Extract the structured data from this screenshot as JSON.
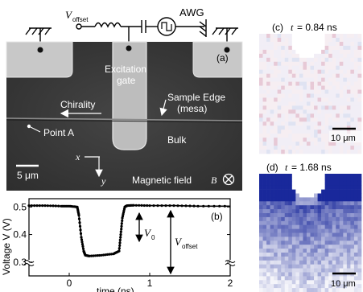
{
  "panel_a": {
    "label": "(a)",
    "circuit": {
      "v_symbol": "V",
      "v_subscript": "offset",
      "awg_label": "AWG"
    },
    "excitation_gate_line1": "Excitation",
    "excitation_gate_line2": "gate",
    "chirality_label": "Chirality",
    "sample_edge_line1": "Sample Edge",
    "sample_edge_line2": "(mesa)",
    "point_a_label": "Point A",
    "bulk_label": "Bulk",
    "axis_x": "x",
    "axis_y": "y",
    "scalebar": "5 μm",
    "magnetic_field_text": "Magnetic field",
    "magnetic_field_symbol": "B"
  },
  "panel_b": {
    "label": "(b)",
    "v0_symbol": "V",
    "v0_sub": "0",
    "voffset_symbol": "V",
    "voffset_sub": "offset"
  },
  "panel_c": {
    "label_prefix": "(c)",
    "t_symbol": "t",
    "value": "= 0.84 ns",
    "scalebar": "10 μm"
  },
  "panel_d": {
    "label_prefix": "(d)",
    "t_symbol": "t",
    "value": "= 1.68 ns",
    "scalebar": "10 μm"
  },
  "chart_data": {
    "type": "line",
    "xlabel": "time (ns)",
    "ylabel": "Voltage V (V)",
    "xlim": [
      -0.5,
      2.0
    ],
    "ylim": [
      0.25,
      0.53
    ],
    "xticks": [
      0,
      1,
      2
    ],
    "yticks": [
      0.3,
      0.4,
      0.5
    ],
    "axis_break": "y-axis broken below 0.3",
    "series": [
      {
        "x": [
          -0.5,
          -0.3,
          -0.1,
          0.0,
          0.1,
          0.12,
          0.15,
          0.18,
          0.2,
          0.25,
          0.4,
          0.55,
          0.62,
          0.64,
          0.66,
          0.69,
          0.72,
          0.8,
          1.0,
          1.3,
          1.6,
          2.0
        ],
        "y": [
          0.505,
          0.505,
          0.503,
          0.503,
          0.5,
          0.47,
          0.39,
          0.34,
          0.325,
          0.322,
          0.325,
          0.33,
          0.34,
          0.4,
          0.46,
          0.5,
          0.505,
          0.506,
          0.505,
          0.505,
          0.503,
          0.503
        ]
      }
    ]
  },
  "colors": {
    "sem_background": "#3a3a3a",
    "sem_gate": "#bdbdbd",
    "heatmap_pale": "#f2e9ee",
    "heatmap_blue": "#1a2a9a"
  }
}
